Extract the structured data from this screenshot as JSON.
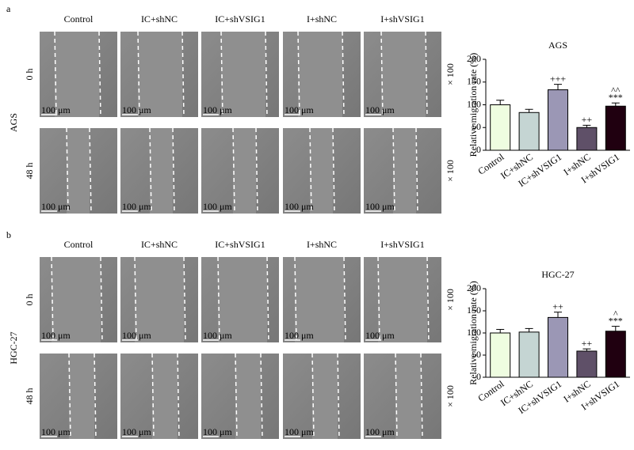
{
  "figure": [
    {
      "label": "a",
      "cell_line": "AGS",
      "columns": [
        "Control",
        "IC+shNC",
        "IC+shVSIG1",
        "I+shNC",
        "I+shVSIG1"
      ],
      "rows": [
        "0 h",
        "48 h"
      ],
      "magnification": "× 100",
      "scale_bar": "100 μm"
    },
    {
      "label": "b",
      "cell_line": "HGC-27",
      "columns": [
        "Control",
        "IC+shNC",
        "IC+shVSIG1",
        "I+shNC",
        "I+shVSIG1"
      ],
      "rows": [
        "0 h",
        "48 h"
      ],
      "magnification": "× 100",
      "scale_bar": "100 μm"
    }
  ],
  "chart_data": [
    {
      "type": "bar",
      "title": "AGS",
      "y_label": "Relative migration rate (%)",
      "categories": [
        "Control",
        "IC+shNC",
        "IC+shVSIG1",
        "I+shNC",
        "I+shVSIG1"
      ],
      "values": [
        100,
        83,
        133,
        50,
        97
      ],
      "errors": [
        10,
        7,
        12,
        5,
        7
      ],
      "colors": [
        "#eefde0",
        "#c5d5d3",
        "#9b97b5",
        "#5f5068",
        "#200010"
      ],
      "ylim": [
        0,
        200
      ],
      "yticks": [
        0,
        50,
        100,
        150,
        200
      ],
      "annotations": [
        {
          "category": "IC+shVSIG1",
          "lines": [
            "+++"
          ]
        },
        {
          "category": "I+shNC",
          "lines": [
            "++"
          ]
        },
        {
          "category": "I+shVSIG1",
          "lines": [
            "^^",
            "***"
          ]
        }
      ]
    },
    {
      "type": "bar",
      "title": "HGC-27",
      "y_label": "Relative migration rate (%)",
      "categories": [
        "Control",
        "IC+shNC",
        "IC+shVSIG1",
        "I+shNC",
        "I+shVSIG1"
      ],
      "values": [
        100,
        102,
        135,
        59,
        104
      ],
      "errors": [
        8,
        8,
        12,
        5,
        11
      ],
      "colors": [
        "#eefde0",
        "#c5d5d3",
        "#9b97b5",
        "#5f5068",
        "#200010"
      ],
      "ylim": [
        0,
        200
      ],
      "yticks": [
        0,
        50,
        100,
        150,
        200
      ],
      "annotations": [
        {
          "category": "IC+shVSIG1",
          "lines": [
            "++"
          ]
        },
        {
          "category": "I+shNC",
          "lines": [
            "++"
          ]
        },
        {
          "category": "I+shVSIG1",
          "lines": [
            "^",
            "***"
          ]
        }
      ]
    }
  ]
}
